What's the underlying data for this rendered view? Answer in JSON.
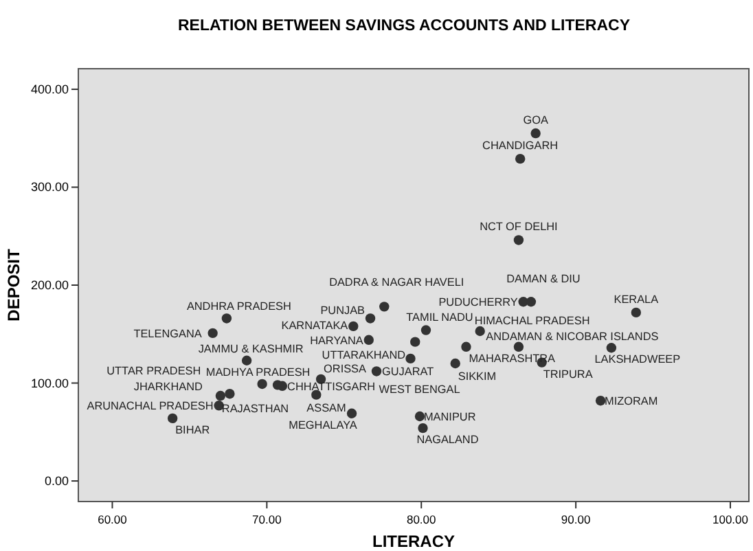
{
  "chart_data": {
    "type": "scatter",
    "title": "RELATION BETWEEN SAVINGS ACCOUNTS AND LITERACY",
    "xlabel": "LITERACY",
    "ylabel": "DEPOSIT",
    "xlim": [
      57.8,
      101.2
    ],
    "ylim": [
      -21,
      421
    ],
    "xticks": [
      {
        "value": 60,
        "label": "60.00"
      },
      {
        "value": 70,
        "label": "70.00"
      },
      {
        "value": 80,
        "label": "80.00"
      },
      {
        "value": 90,
        "label": "90.00"
      },
      {
        "value": 100,
        "label": "100.00"
      }
    ],
    "yticks": [
      {
        "value": 0,
        "label": "0.00"
      },
      {
        "value": 100,
        "label": "100.00"
      },
      {
        "value": 200,
        "label": "200.00"
      },
      {
        "value": 300,
        "label": "300.00"
      },
      {
        "value": 400,
        "label": "400.00"
      }
    ],
    "marker": "circle",
    "series": [
      {
        "color": "#333333",
        "x": [
          87.4,
          86.4,
          86.3,
          86.6,
          87.1,
          93.9,
          77.6,
          67.4,
          76.7,
          75.6,
          66.5,
          76.6,
          80.3,
          83.8,
          79.6,
          86.3,
          82.9,
          79.3,
          68.7,
          77.1,
          73.5,
          82.2,
          87.8,
          92.3,
          69.7,
          70.7,
          71.0,
          67.6,
          67.0,
          66.9,
          73.2,
          75.5,
          63.9,
          79.9,
          80.1,
          91.6
        ],
        "values": [
          355,
          329,
          246,
          183,
          183,
          172,
          178,
          166,
          166,
          158,
          151,
          144,
          154,
          153,
          142,
          137,
          137,
          125,
          123,
          112,
          104,
          120,
          121,
          136,
          99,
          98,
          97,
          89,
          87,
          77,
          88,
          69,
          64,
          66,
          54,
          82
        ]
      }
    ],
    "annotations": [
      {
        "text": "GOA",
        "x": 87.4,
        "y": 355
      },
      {
        "text": "CHANDIGARH",
        "x": 86.4,
        "y": 329
      },
      {
        "text": "NCT OF DELHI",
        "x": 86.3,
        "y": 246
      },
      {
        "text": "PUDUCHERRY",
        "x": 86.6,
        "y": 183
      },
      {
        "text": "DAMAN & DIU",
        "x": 87.1,
        "y": 183
      },
      {
        "text": "KERALA",
        "x": 93.9,
        "y": 172
      },
      {
        "text": "DADRA & NAGAR HAVELI",
        "x": 77.6,
        "y": 178
      },
      {
        "text": "ANDHRA PRADESH",
        "x": 67.4,
        "y": 166
      },
      {
        "text": "PUNJAB",
        "x": 76.7,
        "y": 166
      },
      {
        "text": "KARNATAKA",
        "x": 75.6,
        "y": 158
      },
      {
        "text": "TELENGANA",
        "x": 66.5,
        "y": 151
      },
      {
        "text": "HARYANA",
        "x": 76.6,
        "y": 144
      },
      {
        "text": "TAMIL NADU",
        "x": 80.3,
        "y": 154
      },
      {
        "text": "HIMACHAL PRADESH",
        "x": 83.8,
        "y": 153
      },
      {
        "text": "UTTARAKHAND",
        "x": 79.6,
        "y": 142
      },
      {
        "text": "ANDAMAN & NICOBAR ISLANDS",
        "x": 86.3,
        "y": 137
      },
      {
        "text": "MAHARASHTRA",
        "x": 82.9,
        "y": 137
      },
      {
        "text": "WEST BENGAL",
        "x": 79.3,
        "y": 125
      },
      {
        "text": "JAMMU & KASHMIR",
        "x": 68.7,
        "y": 123
      },
      {
        "text": "GUJARAT",
        "x": 77.1,
        "y": 112
      },
      {
        "text": "ORISSA",
        "x": 73.5,
        "y": 104
      },
      {
        "text": "SIKKIM",
        "x": 82.2,
        "y": 120
      },
      {
        "text": "TRIPURA",
        "x": 87.8,
        "y": 121
      },
      {
        "text": "LAKSHADWEEP",
        "x": 92.3,
        "y": 136
      },
      {
        "text": "MADHYA PRADESH",
        "x": 69.7,
        "y": 99
      },
      {
        "text": "CHHATTISGARH",
        "x": 70.7,
        "y": 98
      },
      {
        "text": "RAJASTHAN",
        "x": 71.0,
        "y": 97
      },
      {
        "text": "UTTAR PRADESH",
        "x": 67.6,
        "y": 89
      },
      {
        "text": "JHARKHAND",
        "x": 67.0,
        "y": 87
      },
      {
        "text": "ARUNACHAL PRADESH",
        "x": 66.9,
        "y": 77
      },
      {
        "text": "ASSAM",
        "x": 73.2,
        "y": 88
      },
      {
        "text": "MEGHALAYA",
        "x": 75.5,
        "y": 69
      },
      {
        "text": "BIHAR",
        "x": 63.9,
        "y": 64
      },
      {
        "text": "MANIPUR",
        "x": 79.9,
        "y": 66
      },
      {
        "text": "NAGALAND",
        "x": 80.1,
        "y": 54
      },
      {
        "text": "MIZORAM",
        "x": 91.6,
        "y": 82
      }
    ]
  }
}
